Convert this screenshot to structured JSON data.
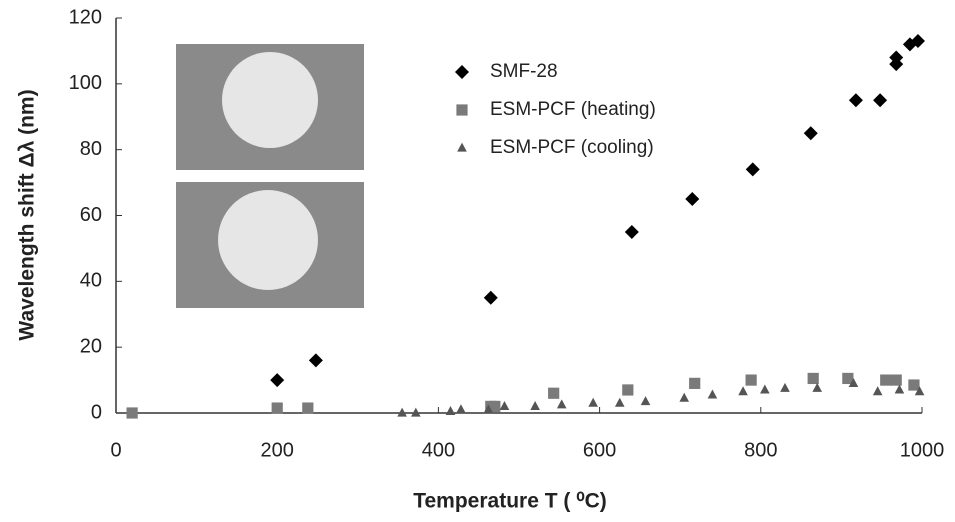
{
  "chart_data": {
    "type": "scatter",
    "x_label": "Temperature T ( ⁰C)",
    "y_label": "Wavelength shift Δλ (nm)",
    "xlim": [
      0,
      1000
    ],
    "xticks": [
      0,
      200,
      400,
      600,
      800,
      1000
    ],
    "ylim": [
      0,
      120
    ],
    "yticks": [
      0,
      20,
      40,
      60,
      80,
      100,
      120
    ],
    "grid": false,
    "legend": "top-right",
    "series": [
      {
        "name": "SMF-28",
        "marker": "diamond",
        "color": "#000000",
        "x": [
          200,
          248,
          465,
          640,
          715,
          790,
          862,
          918,
          948,
          968,
          968,
          985,
          995
        ],
        "values": [
          10,
          16,
          35,
          55,
          65,
          74,
          85,
          95,
          95,
          106,
          108,
          112,
          113
        ]
      },
      {
        "name": "ESM-PCF (heating)",
        "marker": "square",
        "color": "#7a7a7a",
        "x": [
          20,
          200,
          238,
          465,
          470,
          543,
          635,
          718,
          788,
          865,
          908,
          955,
          968,
          990
        ],
        "values": [
          0,
          1.5,
          1.5,
          2,
          2,
          6,
          7,
          9,
          10,
          10.5,
          10.5,
          10,
          10,
          8.5
        ]
      },
      {
        "name": "ESM-PCF (cooling)",
        "marker": "triangle",
        "color": "#555555",
        "x": [
          355,
          372,
          415,
          428,
          462,
          482,
          520,
          553,
          592,
          625,
          657,
          705,
          740,
          778,
          805,
          830,
          870,
          915,
          945,
          972,
          997
        ],
        "values": [
          0,
          0,
          0.5,
          1,
          1,
          2,
          2,
          2.5,
          3,
          3,
          3.5,
          4.5,
          5.5,
          6.5,
          7,
          7.5,
          7.5,
          9,
          6.5,
          7,
          6.5
        ]
      }
    ]
  }
}
